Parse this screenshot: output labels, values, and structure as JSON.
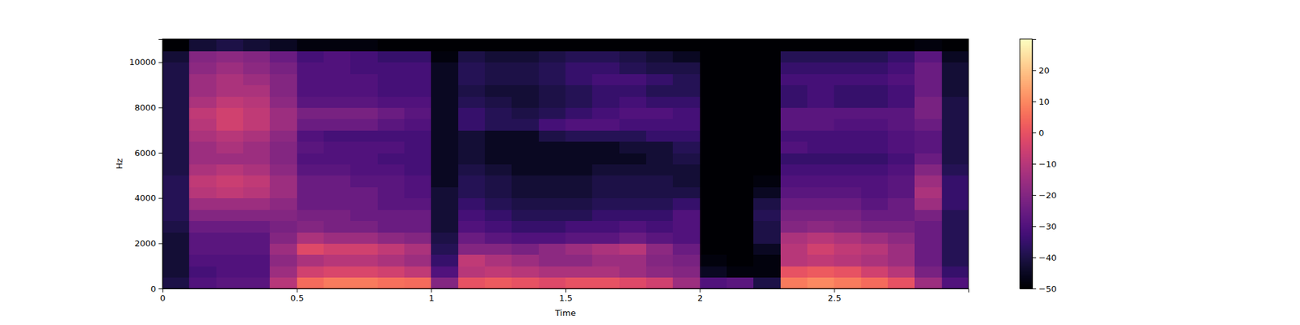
{
  "chart_data": {
    "type": "heatmap",
    "x_label": "Time",
    "y_label": "Hz",
    "xlim": [
      0,
      3.0
    ],
    "ylim": [
      0,
      11025
    ],
    "xticks": [
      0,
      0.5,
      1,
      1.5,
      2,
      2.5
    ],
    "yticks": [
      0,
      2000,
      4000,
      6000,
      8000,
      10000
    ],
    "color": "magma",
    "x_bins": [
      0,
      0.1,
      0.2,
      0.3,
      0.4,
      0.5,
      0.6,
      0.7,
      0.8,
      0.9,
      1.0,
      1.1,
      1.2,
      1.3,
      1.4,
      1.5,
      1.6,
      1.7,
      1.8,
      1.9,
      2.0,
      2.1,
      2.2,
      2.3,
      2.4,
      2.5,
      2.6,
      2.7,
      2.8,
      2.9,
      3.0
    ],
    "y_bins": [
      0,
      500,
      1000,
      1500,
      2000,
      2500,
      3000,
      3500,
      4000,
      4500,
      5000,
      5500,
      6000,
      6500,
      7000,
      7500,
      8000,
      8500,
      9000,
      9500,
      10000,
      10500,
      11025
    ],
    "cells": [
      [
        -40,
        -30,
        -28,
        -28,
        -10,
        5,
        8,
        8,
        6,
        5,
        -20,
        0,
        2,
        0,
        -2,
        0,
        0,
        -2,
        -5,
        -15,
        -30,
        -28,
        -40,
        8,
        10,
        8,
        5,
        0,
        -15,
        -30
      ],
      [
        -42,
        -32,
        -30,
        -30,
        -15,
        -5,
        -3,
        -3,
        -5,
        -8,
        -30,
        -10,
        -8,
        -10,
        -12,
        -12,
        -12,
        -15,
        -18,
        -20,
        -45,
        -48,
        -48,
        0,
        2,
        0,
        -5,
        -10,
        -22,
        -35
      ],
      [
        -42,
        -30,
        -30,
        -30,
        -18,
        -12,
        -10,
        -10,
        -12,
        -15,
        -35,
        -8,
        -12,
        -15,
        -18,
        -18,
        -15,
        -15,
        -20,
        -22,
        -48,
        -50,
        -48,
        -10,
        -8,
        -10,
        -12,
        -15,
        -25,
        -38
      ],
      [
        -42,
        -28,
        -28,
        -28,
        -15,
        -2,
        -5,
        -5,
        -8,
        -12,
        -38,
        -20,
        -20,
        -22,
        -18,
        -15,
        -12,
        -10,
        -18,
        -25,
        -50,
        -50,
        -45,
        -10,
        -5,
        -8,
        -10,
        -15,
        -25,
        -38
      ],
      [
        -42,
        -28,
        -28,
        -28,
        -20,
        -12,
        -15,
        -15,
        -18,
        -20,
        -40,
        -25,
        -28,
        -30,
        -30,
        -28,
        -28,
        -25,
        -28,
        -30,
        -50,
        -50,
        -40,
        -12,
        -10,
        -12,
        -15,
        -18,
        -25,
        -38
      ],
      [
        -40,
        -25,
        -25,
        -25,
        -22,
        -20,
        -22,
        -22,
        -25,
        -25,
        -42,
        -30,
        -32,
        -35,
        -35,
        -32,
        -32,
        -30,
        -32,
        -30,
        -50,
        -50,
        -40,
        -20,
        -18,
        -20,
        -22,
        -22,
        -25,
        -38
      ],
      [
        -38,
        -20,
        -20,
        -20,
        -20,
        -22,
        -22,
        -25,
        -25,
        -25,
        -42,
        -32,
        -35,
        -38,
        -38,
        -38,
        -35,
        -35,
        -35,
        -30,
        -50,
        -50,
        -38,
        -22,
        -22,
        -22,
        -25,
        -25,
        -22,
        -38
      ],
      [
        -38,
        -15,
        -15,
        -15,
        -18,
        -25,
        -25,
        -25,
        -28,
        -28,
        -42,
        -35,
        -38,
        -40,
        -40,
        -40,
        -38,
        -38,
        -38,
        -35,
        -50,
        -50,
        -40,
        -25,
        -25,
        -25,
        -28,
        -25,
        -15,
        -35
      ],
      [
        -38,
        -10,
        -8,
        -10,
        -15,
        -25,
        -25,
        -25,
        -28,
        -30,
        -42,
        -38,
        -40,
        -42,
        -42,
        -42,
        -40,
        -40,
        -40,
        -40,
        -50,
        -50,
        -45,
        -28,
        -28,
        -28,
        -30,
        -28,
        -12,
        -35
      ],
      [
        -38,
        -8,
        -6,
        -8,
        -15,
        -25,
        -25,
        -28,
        -28,
        -30,
        -45,
        -38,
        -40,
        -42,
        -42,
        -42,
        -40,
        -40,
        -40,
        -42,
        -50,
        -50,
        -48,
        -30,
        -30,
        -30,
        -30,
        -28,
        -15,
        -35
      ],
      [
        -40,
        -12,
        -10,
        -12,
        -18,
        -28,
        -28,
        -30,
        -30,
        -32,
        -45,
        -40,
        -42,
        -45,
        -45,
        -45,
        -42,
        -42,
        -42,
        -42,
        -50,
        -50,
        -50,
        -32,
        -32,
        -32,
        -32,
        -30,
        -20,
        -38
      ],
      [
        -40,
        -15,
        -15,
        -15,
        -20,
        -30,
        -30,
        -30,
        -32,
        -32,
        -45,
        -42,
        -45,
        -45,
        -45,
        -45,
        -45,
        -45,
        -42,
        -40,
        -50,
        -50,
        -50,
        -35,
        -35,
        -35,
        -35,
        -32,
        -25,
        -40
      ],
      [
        -40,
        -15,
        -12,
        -15,
        -20,
        -28,
        -30,
        -30,
        -30,
        -32,
        -45,
        -42,
        -45,
        -45,
        -45,
        -45,
        -45,
        -42,
        -42,
        -38,
        -50,
        -50,
        -50,
        -30,
        -32,
        -32,
        -32,
        -30,
        -28,
        -40
      ],
      [
        -40,
        -12,
        -10,
        -12,
        -18,
        -30,
        -32,
        -32,
        -32,
        -32,
        -45,
        -42,
        -45,
        -45,
        -40,
        -38,
        -38,
        -38,
        -35,
        -35,
        -50,
        -50,
        -50,
        -32,
        -32,
        -32,
        -32,
        -30,
        -28,
        -40
      ],
      [
        -40,
        -10,
        -5,
        -8,
        -15,
        -25,
        -25,
        -25,
        -28,
        -30,
        -45,
        -35,
        -38,
        -38,
        -32,
        -30,
        -30,
        -32,
        -32,
        -32,
        -50,
        -50,
        -50,
        -28,
        -28,
        -30,
        -30,
        -28,
        -25,
        -40
      ],
      [
        -40,
        -8,
        -5,
        -8,
        -15,
        -22,
        -22,
        -22,
        -25,
        -28,
        -45,
        -35,
        -38,
        -40,
        -38,
        -35,
        -32,
        -30,
        -30,
        -32,
        -50,
        -50,
        -50,
        -28,
        -28,
        -28,
        -28,
        -28,
        -22,
        -40
      ],
      [
        -40,
        -12,
        -8,
        -10,
        -18,
        -28,
        -28,
        -28,
        -30,
        -30,
        -45,
        -38,
        -40,
        -42,
        -40,
        -38,
        -35,
        -32,
        -35,
        -35,
        -50,
        -50,
        -50,
        -35,
        -32,
        -35,
        -35,
        -32,
        -22,
        -40
      ],
      [
        -40,
        -15,
        -12,
        -12,
        -20,
        -30,
        -30,
        -30,
        -32,
        -32,
        -45,
        -40,
        -42,
        -42,
        -40,
        -38,
        -35,
        -35,
        -38,
        -38,
        -50,
        -50,
        -50,
        -35,
        -32,
        -35,
        -35,
        -32,
        -25,
        -42
      ],
      [
        -40,
        -15,
        -12,
        -15,
        -20,
        -30,
        -30,
        -30,
        -32,
        -32,
        -45,
        -38,
        -40,
        -40,
        -38,
        -35,
        -32,
        -32,
        -35,
        -38,
        -50,
        -50,
        -50,
        -32,
        -32,
        -32,
        -32,
        -30,
        -25,
        -42
      ],
      [
        -40,
        -18,
        -15,
        -18,
        -22,
        -30,
        -30,
        -32,
        -32,
        -32,
        -45,
        -38,
        -40,
        -40,
        -38,
        -35,
        -35,
        -38,
        -40,
        -40,
        -50,
        -50,
        -50,
        -35,
        -35,
        -35,
        -35,
        -32,
        -25,
        -42
      ],
      [
        -42,
        -20,
        -18,
        -20,
        -25,
        -32,
        -30,
        -32,
        -35,
        -35,
        -48,
        -40,
        -42,
        -42,
        -40,
        -38,
        -38,
        -40,
        -42,
        -45,
        -50,
        -50,
        -50,
        -38,
        -38,
        -38,
        -38,
        -35,
        -28,
        -45
      ],
      [
        -50,
        -42,
        -40,
        -42,
        -45,
        -48,
        -48,
        -48,
        -50,
        -50,
        -50,
        -50,
        -50,
        -50,
        -50,
        -50,
        -50,
        -50,
        -50,
        -50,
        -50,
        -50,
        -50,
        -50,
        -50,
        -50,
        -50,
        -50,
        -48,
        -50
      ]
    ],
    "clim": [
      -50,
      30
    ],
    "cticks": [
      {
        "value": -50,
        "label": "−50"
      },
      {
        "value": -40,
        "label": "−40"
      },
      {
        "value": -30,
        "label": "−30"
      },
      {
        "value": -20,
        "label": "−20"
      },
      {
        "value": -10,
        "label": "−10"
      },
      0,
      10,
      20
    ]
  }
}
